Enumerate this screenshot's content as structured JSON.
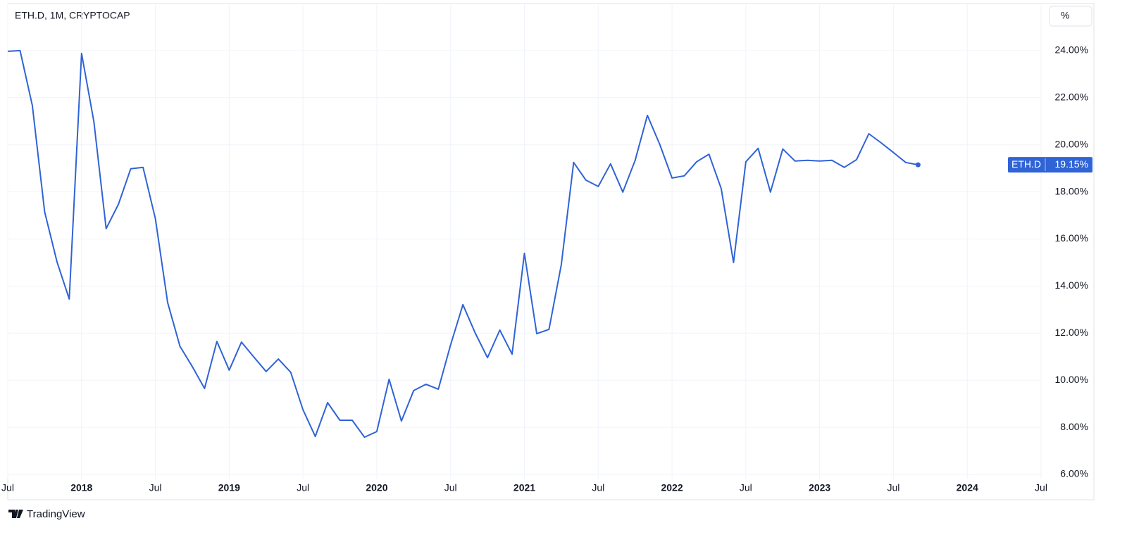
{
  "chart_data": {
    "type": "line",
    "title": "ETH.D, 1M, CRYPTOCAP",
    "x": [
      "2017-07",
      "2017-08",
      "2017-09",
      "2017-10",
      "2017-11",
      "2017-12",
      "2018-01",
      "2018-02",
      "2018-03",
      "2018-04",
      "2018-05",
      "2018-06",
      "2018-07",
      "2018-08",
      "2018-09",
      "2018-10",
      "2018-11",
      "2018-12",
      "2019-01",
      "2019-02",
      "2019-03",
      "2019-04",
      "2019-05",
      "2019-06",
      "2019-07",
      "2019-08",
      "2019-09",
      "2019-10",
      "2019-11",
      "2019-12",
      "2020-01",
      "2020-02",
      "2020-03",
      "2020-04",
      "2020-05",
      "2020-06",
      "2020-07",
      "2020-08",
      "2020-09",
      "2020-10",
      "2020-11",
      "2020-12",
      "2021-01",
      "2021-02",
      "2021-03",
      "2021-04",
      "2021-05",
      "2021-06",
      "2021-07",
      "2021-08",
      "2021-09",
      "2021-10",
      "2021-11",
      "2021-12",
      "2022-01",
      "2022-02",
      "2022-03",
      "2022-04",
      "2022-05",
      "2022-06",
      "2022-07",
      "2022-08",
      "2022-09",
      "2022-10",
      "2022-11",
      "2022-12",
      "2023-01",
      "2023-02",
      "2023-03",
      "2023-04",
      "2023-05",
      "2023-06",
      "2023-07",
      "2023-08",
      "2023-09"
    ],
    "series": [
      {
        "name": "ETH.D",
        "color": "#2f63d6",
        "last_value_label": "19.15%",
        "values": [
          23.97,
          24.0,
          21.67,
          17.15,
          15.03,
          13.45,
          23.88,
          20.98,
          16.44,
          17.48,
          18.98,
          19.04,
          16.86,
          13.3,
          11.44,
          10.58,
          9.65,
          11.65,
          10.43,
          11.62,
          10.99,
          10.37,
          10.9,
          10.34,
          8.75,
          7.61,
          9.05,
          8.3,
          8.3,
          7.58,
          7.82,
          10.04,
          8.27,
          9.56,
          9.83,
          9.62,
          11.5,
          13.21,
          12.01,
          10.96,
          12.13,
          11.11,
          15.39,
          11.98,
          12.16,
          14.91,
          19.25,
          18.5,
          18.23,
          19.19,
          17.99,
          19.34,
          21.25,
          20.02,
          18.59,
          18.68,
          19.28,
          19.6,
          18.14,
          15.0,
          19.28,
          19.85,
          17.99,
          19.82,
          19.31,
          19.34,
          19.31,
          19.34,
          19.04,
          19.37,
          20.47,
          20.08,
          19.67,
          19.25,
          19.15
        ]
      }
    ],
    "xlim": [
      "2017-07",
      "2024-07"
    ],
    "xticks": [
      {
        "value": "2017-07",
        "label": "Jul"
      },
      {
        "value": "2018-01",
        "label": "2018"
      },
      {
        "value": "2018-07",
        "label": "Jul"
      },
      {
        "value": "2019-01",
        "label": "2019"
      },
      {
        "value": "2019-07",
        "label": "Jul"
      },
      {
        "value": "2020-01",
        "label": "2020"
      },
      {
        "value": "2020-07",
        "label": "Jul"
      },
      {
        "value": "2021-01",
        "label": "2021"
      },
      {
        "value": "2021-07",
        "label": "Jul"
      },
      {
        "value": "2022-01",
        "label": "2022"
      },
      {
        "value": "2022-07",
        "label": "Jul"
      },
      {
        "value": "2023-01",
        "label": "2023"
      },
      {
        "value": "2023-07",
        "label": "Jul"
      },
      {
        "value": "2024-01",
        "label": "2024"
      },
      {
        "value": "2024-07",
        "label": "Jul"
      }
    ],
    "ylim": [
      5.82,
      26.0
    ],
    "yticks": [
      {
        "value": 6,
        "label": "6.00%"
      },
      {
        "value": 8,
        "label": "8.00%"
      },
      {
        "value": 10,
        "label": "10.00%"
      },
      {
        "value": 12,
        "label": "12.00%"
      },
      {
        "value": 14,
        "label": "14.00%"
      },
      {
        "value": 16,
        "label": "16.00%"
      },
      {
        "value": 18,
        "label": "18.00%"
      },
      {
        "value": 20,
        "label": "20.00%"
      },
      {
        "value": 22,
        "label": "22.00%"
      },
      {
        "value": 24,
        "label": "24.00%"
      }
    ],
    "grid": true
  },
  "ui": {
    "unit_button": "%",
    "brand": "TradingView"
  }
}
